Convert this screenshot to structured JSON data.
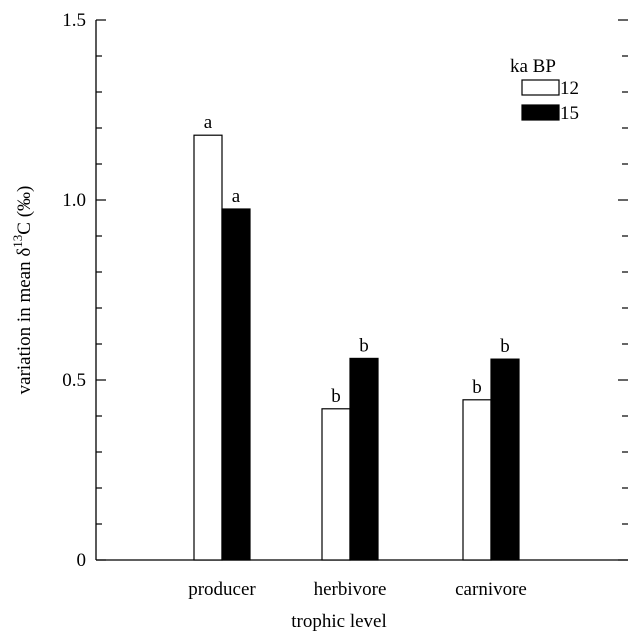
{
  "chart_data": {
    "type": "bar",
    "categories": [
      "producer",
      "herbivore",
      "carnivore"
    ],
    "series": [
      {
        "name": "12",
        "values": [
          1.18,
          0.42,
          0.445
        ],
        "sig": [
          "a",
          "b",
          "b"
        ],
        "fill": "#ffffff"
      },
      {
        "name": "15",
        "values": [
          0.975,
          0.56,
          0.558
        ],
        "sig": [
          "a",
          "b",
          "b"
        ],
        "fill": "#000000"
      }
    ],
    "legend_title": "ka BP",
    "legend_position": "top-right",
    "xlabel": "trophic level",
    "ylabel_main": "variation in mean δ",
    "ylabel_sup": "13",
    "ylabel_tail": "C (‰)",
    "ylim": [
      0,
      1.5
    ],
    "y_ticks": [
      {
        "value": 0,
        "label": "0"
      },
      {
        "value": 0.5,
        "label": "0.5"
      },
      {
        "value": 1.0,
        "label": "1.0"
      },
      {
        "value": 1.5,
        "label": "1.5"
      }
    ],
    "minor_tick_step": 0.1,
    "grid": false
  }
}
